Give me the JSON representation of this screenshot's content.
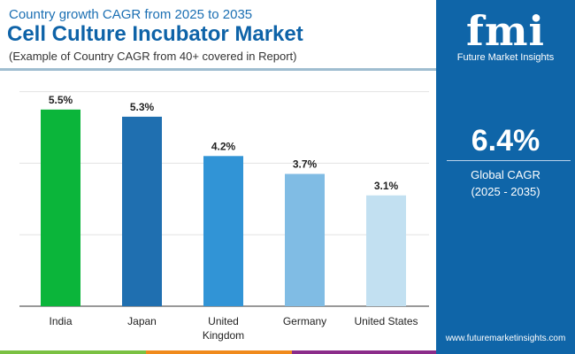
{
  "header": {
    "kicker": "Country growth CAGR from 2025 to 2035",
    "title": "Cell Culture Incubator Market",
    "subtitle": "(Example of Country CAGR from 40+ covered in Report)"
  },
  "side": {
    "logo": "fmi",
    "brand": "Future Market Insights",
    "value": "6.4%",
    "label": "Global CAGR",
    "period": "(2025 - 2035)",
    "url": "www.futuremarketinsights.com",
    "bg": "#0f65a8"
  },
  "chart_data": {
    "type": "bar",
    "categories": [
      "India",
      "Japan",
      "United Kingdom",
      "Germany",
      "United States"
    ],
    "values": [
      5.5,
      5.3,
      4.2,
      3.7,
      3.1
    ],
    "labels": [
      "5.5%",
      "5.3%",
      "4.2%",
      "3.7%",
      "3.1%"
    ],
    "colors": [
      "#0bb53a",
      "#1f6fb0",
      "#3194d6",
      "#80bce4",
      "#c2e0f1"
    ],
    "ylim": [
      0,
      6
    ],
    "yticks": [
      2,
      4,
      6
    ],
    "grid": true,
    "xlabel": "",
    "ylabel": ""
  }
}
